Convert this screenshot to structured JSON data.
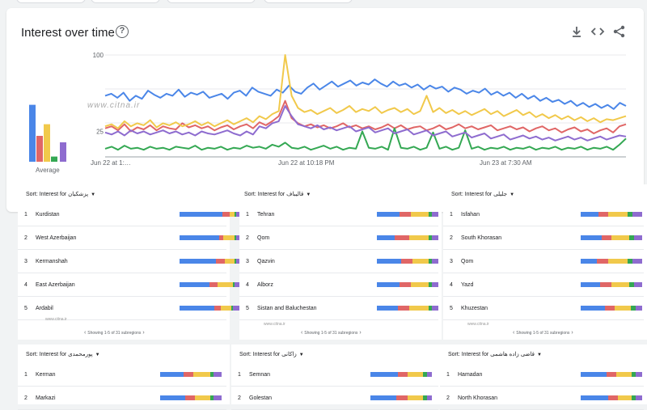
{
  "colors": {
    "blue": "#4a86e8",
    "red": "#e06666",
    "yellow": "#f1c94b",
    "green": "#34a853",
    "purple": "#8e6ccf"
  },
  "card": {
    "title": "Interest over time",
    "help_icon": "help-circle-icon",
    "tools": [
      "download-icon",
      "embed-code-icon",
      "share-icon"
    ],
    "average_label": "Average",
    "watermark": "www.citna.ir",
    "average_values": {
      "blue": 88,
      "red": 40,
      "yellow": 58,
      "green": 8,
      "purple": 30
    }
  },
  "chart_data": {
    "type": "line",
    "title": "Interest over time",
    "ylim": [
      0,
      100
    ],
    "y_ticks": [
      "100",
      "",
      "25"
    ],
    "x_ticks": [
      "Jun 22 at 1:…",
      "Jun 22 at 10:18 PM",
      "Jun 23 at 7:30 AM"
    ],
    "series": [
      {
        "name": "پزشکیان",
        "color": "blue",
        "values": [
          60,
          62,
          58,
          63,
          55,
          60,
          57,
          65,
          61,
          58,
          62,
          60,
          66,
          59,
          63,
          61,
          64,
          58,
          60,
          62,
          57,
          63,
          65,
          60,
          68,
          64,
          62,
          60,
          66,
          63,
          70,
          64,
          62,
          68,
          72,
          66,
          70,
          74,
          69,
          72,
          75,
          70,
          73,
          71,
          76,
          72,
          69,
          74,
          70,
          72,
          68,
          71,
          66,
          70,
          67,
          69,
          64,
          68,
          66,
          62,
          65,
          63,
          67,
          61,
          64,
          60,
          63,
          58,
          62,
          57,
          60,
          55,
          58,
          54,
          56,
          52,
          55,
          50,
          53,
          49,
          52,
          48,
          51,
          47,
          53,
          50
        ]
      },
      {
        "name": "قالیباف",
        "color": "red",
        "values": [
          28,
          30,
          26,
          32,
          25,
          29,
          27,
          31,
          26,
          30,
          28,
          27,
          33,
          29,
          31,
          28,
          30,
          26,
          29,
          31,
          27,
          30,
          32,
          28,
          34,
          31,
          35,
          40,
          55,
          38,
          33,
          30,
          32,
          29,
          31,
          28,
          30,
          33,
          29,
          31,
          28,
          30,
          27,
          29,
          32,
          28,
          31,
          27,
          29,
          30,
          26,
          28,
          31,
          27,
          29,
          32,
          28,
          30,
          27,
          29,
          31,
          26,
          28,
          30,
          27,
          29,
          25,
          28,
          30,
          26,
          28,
          24,
          27,
          29,
          25,
          27,
          23,
          26,
          28,
          24,
          30,
          32
        ]
      },
      {
        "name": "جلیلی",
        "color": "yellow",
        "values": [
          30,
          32,
          28,
          35,
          30,
          33,
          31,
          36,
          29,
          33,
          31,
          34,
          30,
          32,
          35,
          31,
          34,
          30,
          33,
          36,
          32,
          35,
          38,
          34,
          40,
          37,
          42,
          45,
          100,
          60,
          48,
          44,
          46,
          42,
          45,
          48,
          43,
          46,
          50,
          44,
          47,
          45,
          49,
          43,
          46,
          48,
          44,
          47,
          42,
          45,
          60,
          44,
          48,
          43,
          46,
          42,
          45,
          41,
          44,
          47,
          42,
          45,
          40,
          43,
          46,
          41,
          44,
          39,
          42,
          38,
          41,
          37,
          40,
          36,
          39,
          35,
          38,
          34,
          37,
          36,
          38,
          40
        ]
      },
      {
        "name": "زاکانی",
        "color": "green",
        "values": [
          8,
          10,
          7,
          11,
          8,
          9,
          7,
          10,
          8,
          9,
          7,
          10,
          9,
          8,
          11,
          7,
          9,
          8,
          10,
          7,
          9,
          8,
          11,
          9,
          10,
          8,
          12,
          10,
          14,
          9,
          8,
          10,
          7,
          9,
          11,
          8,
          10,
          7,
          9,
          8,
          25,
          9,
          8,
          10,
          7,
          28,
          9,
          8,
          10,
          7,
          9,
          24,
          8,
          10,
          7,
          9,
          26,
          8,
          10,
          7,
          9,
          8,
          10,
          7,
          9,
          8,
          10,
          7,
          9,
          8,
          10,
          7,
          9,
          8,
          10,
          7,
          9,
          8,
          10,
          7,
          12,
          18
        ]
      },
      {
        "name": "پورمحمدی",
        "color": "purple",
        "values": [
          24,
          22,
          25,
          21,
          26,
          23,
          25,
          22,
          24,
          26,
          23,
          25,
          22,
          24,
          21,
          25,
          23,
          22,
          24,
          26,
          23,
          21,
          25,
          22,
          30,
          28,
          33,
          35,
          50,
          40,
          32,
          30,
          28,
          31,
          27,
          29,
          26,
          28,
          30,
          25,
          27,
          29,
          24,
          26,
          28,
          23,
          25,
          27,
          22,
          24,
          26,
          21,
          23,
          25,
          20,
          22,
          24,
          19,
          21,
          23,
          18,
          20,
          22,
          17,
          19,
          21,
          18,
          20,
          17,
          19,
          16,
          18,
          20,
          17,
          19,
          16,
          18,
          20,
          17,
          19,
          21,
          20
        ]
      }
    ]
  },
  "panels": [
    {
      "sort_label": "Sort:",
      "interest_label": "Interest for",
      "candidate": "پزشکیان",
      "rows": [
        {
          "num": "1",
          "name": "Kurdistan",
          "split": [
            52,
            8,
            6,
            2,
            6
          ]
        },
        {
          "num": "2",
          "name": "West Azerbaijan",
          "split": [
            50,
            6,
            14,
            2,
            6
          ]
        },
        {
          "num": "3",
          "name": "Kermanshah",
          "split": [
            46,
            12,
            12,
            2,
            6
          ]
        },
        {
          "num": "4",
          "name": "East Azerbaijan",
          "split": [
            38,
            10,
            20,
            2,
            8
          ]
        },
        {
          "num": "5",
          "name": "Ardabil",
          "split": [
            44,
            8,
            14,
            2,
            10
          ]
        }
      ],
      "pager": "Showing 1-5 of 31 subregions",
      "watermark": "www.citna.ir"
    },
    {
      "sort_label": "Sort:",
      "interest_label": "Interest for",
      "candidate": "قالیباف",
      "rows": [
        {
          "num": "1",
          "name": "Tehran",
          "split": [
            28,
            14,
            22,
            4,
            8
          ]
        },
        {
          "num": "2",
          "name": "Qom",
          "split": [
            22,
            18,
            24,
            4,
            8
          ]
        },
        {
          "num": "3",
          "name": "Qazvin",
          "split": [
            30,
            14,
            20,
            4,
            8
          ]
        },
        {
          "num": "4",
          "name": "Alborz",
          "split": [
            28,
            14,
            22,
            4,
            8
          ]
        },
        {
          "num": "5",
          "name": "Sistan and Baluchestan",
          "split": [
            26,
            14,
            24,
            4,
            8
          ]
        }
      ],
      "pager": "Showing 1-5 of 31 subregions",
      "watermark": "www.citna.ir"
    },
    {
      "sort_label": "Sort:",
      "interest_label": "Interest for",
      "candidate": "جلیلی",
      "rows": [
        {
          "num": "1",
          "name": "Isfahan",
          "split": [
            22,
            12,
            24,
            6,
            12
          ]
        },
        {
          "num": "2",
          "name": "South Khorasan",
          "split": [
            26,
            12,
            22,
            6,
            10
          ]
        },
        {
          "num": "3",
          "name": "Qom",
          "split": [
            20,
            14,
            24,
            6,
            12
          ]
        },
        {
          "num": "4",
          "name": "Yazd",
          "split": [
            24,
            14,
            22,
            6,
            10
          ]
        },
        {
          "num": "5",
          "name": "Khuzestan",
          "split": [
            30,
            12,
            20,
            6,
            8
          ]
        }
      ],
      "pager": "Showing 1-5 of 31 subregions",
      "watermark": "www.citna.ir"
    },
    {
      "sort_label": "Sort:",
      "interest_label": "Interest for",
      "candidate": "پورمحمدی",
      "rows": [
        {
          "num": "1",
          "name": "Kerman",
          "split": [
            28,
            12,
            20,
            4,
            10
          ]
        },
        {
          "num": "2",
          "name": "Markazi",
          "split": [
            30,
            12,
            18,
            4,
            10
          ]
        }
      ]
    },
    {
      "sort_label": "Sort:",
      "interest_label": "Interest for",
      "candidate": "زاکانی",
      "rows": [
        {
          "num": "1",
          "name": "Semnan",
          "split": [
            36,
            12,
            20,
            6,
            6
          ]
        },
        {
          "num": "2",
          "name": "Golestan",
          "split": [
            34,
            14,
            20,
            6,
            6
          ]
        }
      ]
    },
    {
      "sort_label": "Sort:",
      "interest_label": "Interest for",
      "candidate": "قاضی زاده هاشمی",
      "rows": [
        {
          "num": "1",
          "name": "Hamadan",
          "split": [
            34,
            12,
            20,
            6,
            8
          ]
        },
        {
          "num": "2",
          "name": "North Khorasan",
          "split": [
            36,
            12,
            18,
            6,
            8
          ]
        }
      ]
    }
  ]
}
